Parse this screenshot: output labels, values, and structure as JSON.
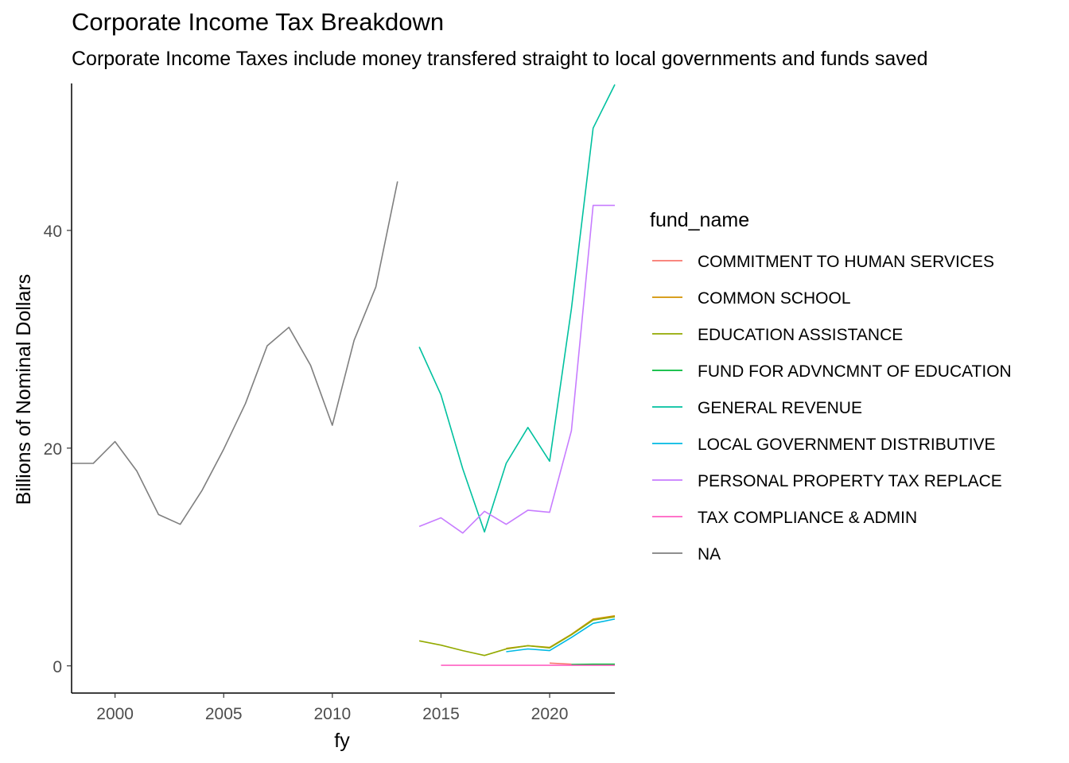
{
  "chart_data": {
    "type": "line",
    "title": "Corporate Income Tax Breakdown",
    "subtitle": "Corporate Income Taxes include money transfered straight to local governments and funds saved",
    "xlabel": "fy",
    "ylabel": "Billions of Nominal Dollars",
    "xlim": [
      1998,
      2023
    ],
    "ylim": [
      -2.5,
      53.5
    ],
    "x_ticks": [
      2000,
      2005,
      2010,
      2015,
      2020
    ],
    "y_ticks": [
      0,
      20,
      40
    ],
    "grid": false,
    "legend": {
      "title": "fund_name",
      "position": "right"
    },
    "series": [
      {
        "name": "COMMITMENT TO HUMAN SERVICES",
        "color": "#F8766D",
        "x": [
          2020,
          2021
        ],
        "y": [
          0.25,
          0.15
        ]
      },
      {
        "name": "COMMON SCHOOL",
        "color": "#D39200",
        "x": [
          2018,
          2019,
          2020,
          2021,
          2022,
          2023
        ],
        "y": [
          1.6,
          1.85,
          1.7,
          2.9,
          4.3,
          4.6
        ]
      },
      {
        "name": "EDUCATION ASSISTANCE",
        "color": "#93AA00",
        "x": [
          2014,
          2015,
          2016,
          2017,
          2018,
          2019,
          2020,
          2021,
          2022,
          2023
        ],
        "y": [
          2.3,
          1.9,
          1.4,
          0.95,
          1.55,
          1.85,
          1.65,
          2.85,
          4.2,
          4.5
        ]
      },
      {
        "name": "FUND FOR ADVNCMNT OF EDUCATION",
        "color": "#00BA38",
        "x": [
          2021,
          2022,
          2023
        ],
        "y": [
          0.12,
          0.15,
          0.15
        ]
      },
      {
        "name": "GENERAL REVENUE",
        "color": "#00C19F",
        "x": [
          2014,
          2015,
          2016,
          2017,
          2018,
          2019,
          2020,
          2021,
          2022,
          2023
        ],
        "y": [
          29.3,
          24.9,
          18.1,
          12.3,
          18.6,
          21.9,
          18.8,
          32.8,
          49.4,
          53.4
        ]
      },
      {
        "name": "LOCAL GOVERNMENT DISTRIBUTIVE",
        "color": "#00B9E3",
        "x": [
          2018,
          2019,
          2020,
          2021,
          2022,
          2023
        ],
        "y": [
          1.3,
          1.55,
          1.4,
          2.6,
          3.9,
          4.3
        ]
      },
      {
        "name": "PERSONAL PROPERTY TAX REPLACE",
        "color": "#C77CFF",
        "x": [
          2014,
          2015,
          2016,
          2017,
          2018,
          2019,
          2020,
          2021,
          2022,
          2023
        ],
        "y": [
          12.8,
          13.6,
          12.2,
          14.2,
          13.0,
          14.3,
          14.1,
          21.6,
          42.3,
          42.3
        ]
      },
      {
        "name": "TAX COMPLIANCE & ADMIN",
        "color": "#FF61C3",
        "x": [
          2015,
          2016,
          2017,
          2018,
          2019,
          2020,
          2021,
          2022,
          2023
        ],
        "y": [
          0.05,
          0.05,
          0.05,
          0.05,
          0.05,
          0.05,
          0.05,
          0.05,
          0.05
        ]
      },
      {
        "name": "NA",
        "color": "#7F7F7F",
        "x": [
          1998,
          1999,
          2000,
          2001,
          2002,
          2003,
          2004,
          2005,
          2006,
          2007,
          2008,
          2009,
          2010,
          2011,
          2012,
          2013
        ],
        "y": [
          18.6,
          18.6,
          20.6,
          17.9,
          13.9,
          13.0,
          16.1,
          19.9,
          24.1,
          29.4,
          31.1,
          27.6,
          22.1,
          29.9,
          34.8,
          44.5
        ]
      }
    ]
  }
}
